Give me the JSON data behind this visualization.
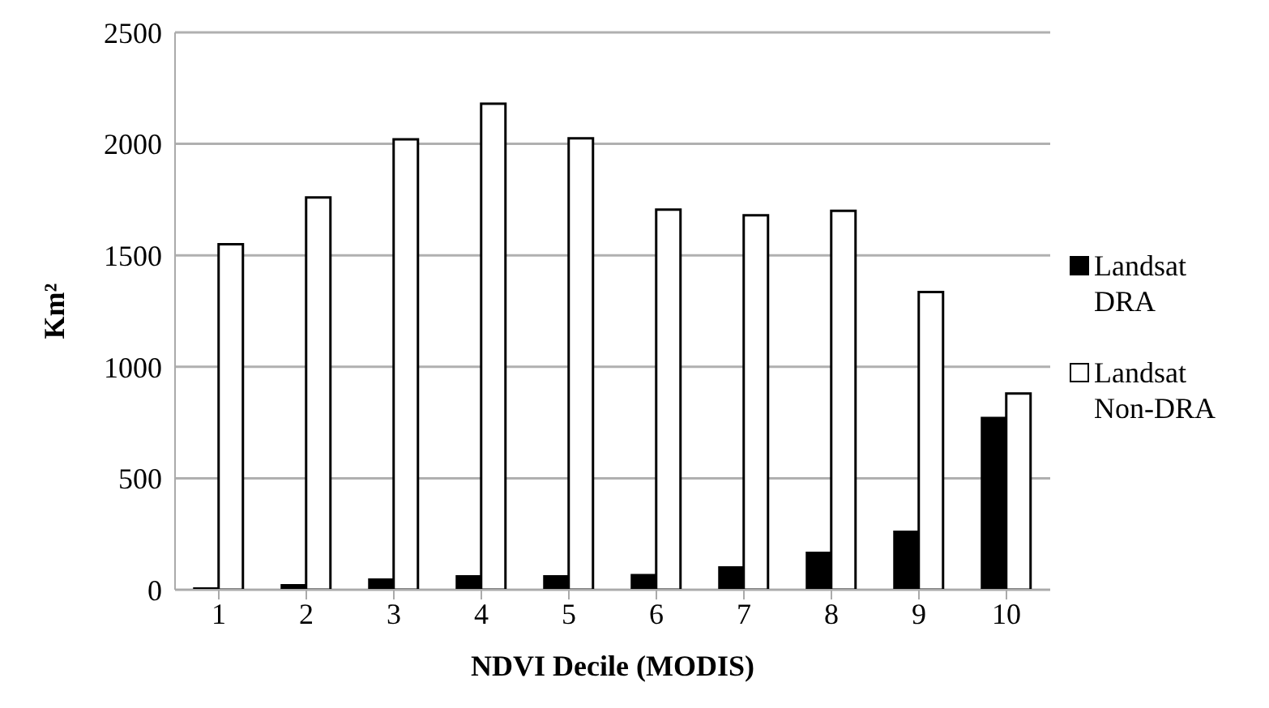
{
  "chart_data": {
    "type": "bar",
    "xlabel": "NDVI Decile (MODIS)",
    "ylabel": "Km²",
    "categories": [
      "1",
      "2",
      "3",
      "4",
      "5",
      "6",
      "7",
      "8",
      "9",
      "10"
    ],
    "series": [
      {
        "name": "Landsat DRA",
        "color": "#000000",
        "values": [
          5,
          20,
          45,
          60,
          60,
          65,
          100,
          165,
          260,
          770
        ]
      },
      {
        "name": "Landsat Non-DRA",
        "color": "#ffffff",
        "values": [
          1550,
          1760,
          2020,
          2180,
          2025,
          1705,
          1680,
          1700,
          1335,
          880
        ]
      }
    ],
    "ylim": [
      0,
      2500
    ],
    "yticks": [
      0,
      500,
      1000,
      1500,
      2000,
      2500
    ],
    "grid": "y",
    "legend": "right"
  }
}
